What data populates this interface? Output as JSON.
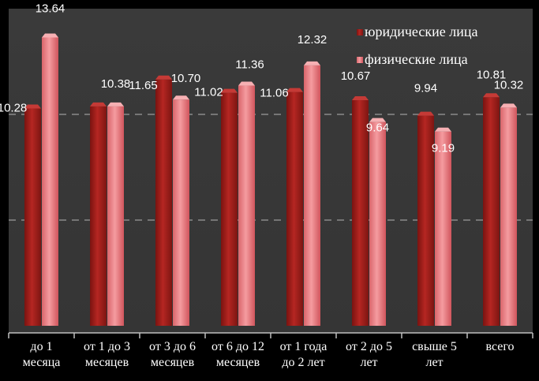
{
  "chart_data": {
    "type": "bar",
    "categories": [
      [
        "до 1",
        "месяца"
      ],
      [
        "от 1 до 3",
        "месяцев"
      ],
      [
        "от 3 до 6",
        "месяцев"
      ],
      [
        "от 6 до 12",
        "месяцев"
      ],
      [
        "от 1 года",
        "до 2 лет"
      ],
      [
        "от 2 до 5",
        "лет"
      ],
      [
        "свыше 5",
        "лет"
      ],
      [
        "всего"
      ]
    ],
    "series": [
      {
        "name": "юридические лица",
        "values": [
          10.28,
          10.38,
          11.65,
          11.02,
          11.06,
          10.67,
          9.94,
          10.81
        ],
        "color": "#a5201c"
      },
      {
        "name": "физические лица",
        "values": [
          13.64,
          10.38,
          10.7,
          11.36,
          12.32,
          9.64,
          9.19,
          10.32
        ],
        "color": "#e8787c"
      }
    ],
    "value_labels": [
      [
        "10.28",
        "13.64"
      ],
      [
        "",
        "10.38"
      ],
      [
        "11.65",
        "10.70"
      ],
      [
        "11.02",
        "11.36"
      ],
      [
        "11.06",
        "12.32"
      ],
      [
        "10.67",
        "9.64"
      ],
      [
        "9.94",
        "9.19"
      ],
      [
        "10.81",
        "10.32"
      ]
    ],
    "ylim": [
      0,
      15
    ],
    "grid": true,
    "legend_position": "top-right",
    "title": "",
    "xlabel": "",
    "ylabel": ""
  }
}
